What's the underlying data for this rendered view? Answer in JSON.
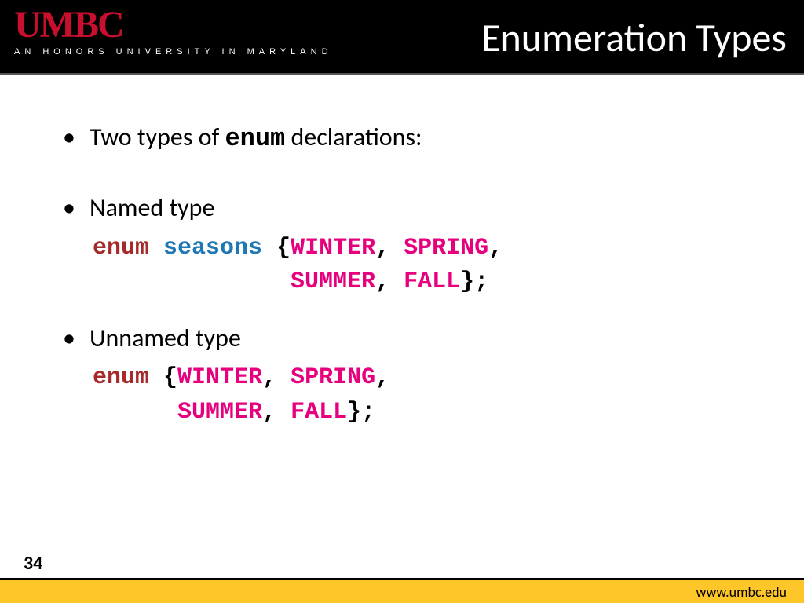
{
  "header": {
    "logo_main": "UMBC",
    "logo_tagline": "AN HONORS UNIVERSITY IN MARYLAND",
    "slide_title": "Enumeration Types"
  },
  "colors": {
    "header_bg": "#000000",
    "logo_red": "#c8102e",
    "title_white": "#ffffff",
    "footer_yellow": "#ffc629",
    "code_keyword": "#a52a2a",
    "code_typename": "#1f77b4",
    "code_value": "#e6007e",
    "code_punct": "#000000"
  },
  "content": {
    "bullet1_prefix": "Two types of ",
    "bullet1_code": "enum",
    "bullet1_suffix": " declarations:",
    "bullet2": "Named type",
    "bullet3": "Unnamed type",
    "code1": {
      "keyword": "enum",
      "typename": "seasons",
      "open": "{",
      "vals": [
        "WINTER",
        "SPRING",
        "SUMMER",
        "FALL"
      ],
      "comma": ",",
      "close": "};",
      "line1_text": "enum seasons {WINTER, SPRING,",
      "line2_indent": "              ",
      "line2_text": "SUMMER, FALL};"
    },
    "code2": {
      "keyword": "enum",
      "open": "{",
      "vals": [
        "WINTER",
        "SPRING",
        "SUMMER",
        "FALL"
      ],
      "comma": ",",
      "close": "};",
      "line2_indent": "      "
    }
  },
  "footer": {
    "page_number": "34",
    "url": "www.umbc.edu"
  },
  "typography": {
    "title_fontsize": 50,
    "body_fontsize": 32,
    "code_fontsize": 30,
    "footer_fontsize": 18,
    "pagenum_fontsize": 24
  }
}
